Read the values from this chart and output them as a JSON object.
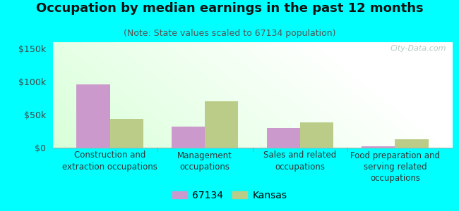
{
  "title": "Occupation by median earnings in the past 12 months",
  "subtitle": "(Note: State values scaled to 67134 population)",
  "categories": [
    "Construction and\nextraction occupations",
    "Management\noccupations",
    "Sales and related\noccupations",
    "Food preparation and\nserving related\noccupations"
  ],
  "values_67134": [
    96000,
    32000,
    30000,
    2000
  ],
  "values_kansas": [
    44000,
    70000,
    38000,
    13000
  ],
  "color_67134": "#cc99cc",
  "color_kansas": "#bbcc88",
  "ylim": [
    0,
    160000
  ],
  "yticks": [
    0,
    50000,
    100000,
    150000
  ],
  "ytick_labels": [
    "$0",
    "$50k",
    "$100k",
    "$150k"
  ],
  "bar_width": 0.35,
  "outer_bg": "#00ffff",
  "watermark": "City-Data.com",
  "legend_labels": [
    "67134",
    "Kansas"
  ],
  "title_fontsize": 13,
  "subtitle_fontsize": 9,
  "tick_fontsize": 9,
  "xlabel_fontsize": 8.5
}
